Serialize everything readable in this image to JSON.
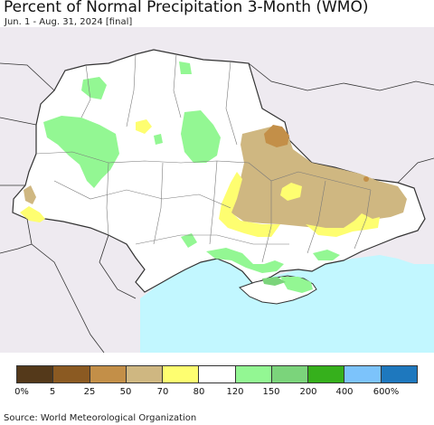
{
  "header": {
    "title": "Percent of Normal Precipitation 3-Month (WMO)",
    "subtitle": "Jun. 1 - Aug. 31, 2024 [final]"
  },
  "map_colors": {
    "background": "#ffffff",
    "neighbor_land": "#eeeaf0",
    "sea": "#c2f7ff",
    "border": "#333333",
    "oblast_border": "#7a7a7a"
  },
  "legend": {
    "colors": [
      "#54391a",
      "#8b5a22",
      "#c38f48",
      "#cfb781",
      "#fefe70",
      "#ffffff",
      "#93f793",
      "#7bd47b",
      "#36b01c",
      "#7cc3fb",
      "#1e78be"
    ],
    "labels": [
      "0%",
      "5",
      "25",
      "50",
      "70",
      "80",
      "120",
      "150",
      "200",
      "400",
      "600%"
    ]
  },
  "footer": {
    "source": "Source: World Meteorological Organization"
  }
}
